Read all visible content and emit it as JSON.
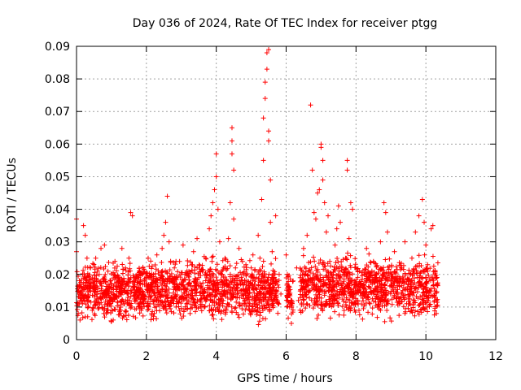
{
  "chart_data": {
    "type": "scatter",
    "title": "Day 036 of 2024, Rate Of TEC Index for receiver ptgg",
    "xlabel": "GPS time / hours",
    "ylabel": "ROTI / TECUs",
    "xlim": [
      0,
      12
    ],
    "ylim": [
      0,
      0.09
    ],
    "xticks": [
      0,
      2,
      4,
      6,
      8,
      10,
      12
    ],
    "xtick_labels": [
      "0",
      "2",
      "4",
      "6",
      "8",
      "10",
      "12"
    ],
    "yticks": [
      0,
      0.01,
      0.02,
      0.03,
      0.04,
      0.05,
      0.06,
      0.07,
      0.08,
      0.09
    ],
    "ytick_labels": [
      "0",
      "0.01",
      "0.02",
      "0.03",
      "0.04",
      "0.05",
      "0.06",
      "0.07",
      "0.08",
      "0.09"
    ],
    "grid": true,
    "marker": "+",
    "series": [
      {
        "name": "ROTI",
        "color": "#ff0000",
        "points": [
          [
            0.0,
            0.037
          ],
          [
            0.0,
            0.027
          ],
          [
            0.05,
            0.015
          ],
          [
            0.05,
            0.008
          ],
          [
            0.1,
            0.012
          ],
          [
            0.1,
            0.006
          ],
          [
            0.2,
            0.035
          ],
          [
            0.25,
            0.032
          ],
          [
            0.3,
            0.025
          ],
          [
            0.3,
            0.018
          ],
          [
            0.35,
            0.012
          ],
          [
            0.4,
            0.022
          ],
          [
            0.45,
            0.009
          ],
          [
            0.5,
            0.016
          ],
          [
            0.55,
            0.025
          ],
          [
            0.6,
            0.011
          ],
          [
            0.65,
            0.02
          ],
          [
            0.7,
            0.028
          ],
          [
            0.75,
            0.014
          ],
          [
            0.8,
            0.029
          ],
          [
            0.85,
            0.008
          ],
          [
            0.9,
            0.021
          ],
          [
            0.95,
            0.012
          ],
          [
            1.0,
            0.017
          ],
          [
            1.05,
            0.006
          ],
          [
            1.1,
            0.024
          ],
          [
            1.15,
            0.013
          ],
          [
            1.2,
            0.019
          ],
          [
            1.25,
            0.009
          ],
          [
            1.3,
            0.028
          ],
          [
            1.35,
            0.015
          ],
          [
            1.4,
            0.022
          ],
          [
            1.45,
            0.011
          ],
          [
            1.5,
            0.025
          ],
          [
            1.55,
            0.039
          ],
          [
            1.6,
            0.038
          ],
          [
            1.65,
            0.018
          ],
          [
            1.7,
            0.012
          ],
          [
            1.75,
            0.02
          ],
          [
            1.8,
            0.015
          ],
          [
            1.85,
            0.009
          ],
          [
            1.9,
            0.022
          ],
          [
            1.95,
            0.013
          ],
          [
            2.0,
            0.017
          ],
          [
            2.05,
            0.025
          ],
          [
            2.1,
            0.011
          ],
          [
            2.15,
            0.008
          ],
          [
            2.2,
            0.02
          ],
          [
            2.25,
            0.014
          ],
          [
            2.3,
            0.026
          ],
          [
            2.35,
            0.012
          ],
          [
            2.4,
            0.019
          ],
          [
            2.45,
            0.028
          ],
          [
            2.5,
            0.032
          ],
          [
            2.55,
            0.036
          ],
          [
            2.6,
            0.044
          ],
          [
            2.65,
            0.03
          ],
          [
            2.7,
            0.018
          ],
          [
            2.75,
            0.012
          ],
          [
            2.8,
            0.022
          ],
          [
            2.85,
            0.01
          ],
          [
            2.9,
            0.016
          ],
          [
            2.95,
            0.024
          ],
          [
            3.0,
            0.013
          ],
          [
            3.05,
            0.029
          ],
          [
            3.1,
            0.02
          ],
          [
            3.15,
            0.011
          ],
          [
            3.2,
            0.017
          ],
          [
            3.25,
            0.008
          ],
          [
            3.3,
            0.023
          ],
          [
            3.35,
            0.027
          ],
          [
            3.4,
            0.015
          ],
          [
            3.45,
            0.031
          ],
          [
            3.5,
            0.019
          ],
          [
            3.55,
            0.01
          ],
          [
            3.6,
            0.021
          ],
          [
            3.65,
            0.013
          ],
          [
            3.7,
            0.025
          ],
          [
            3.75,
            0.016
          ],
          [
            3.8,
            0.034
          ],
          [
            3.85,
            0.038
          ],
          [
            3.9,
            0.042
          ],
          [
            3.95,
            0.046
          ],
          [
            4.0,
            0.05
          ],
          [
            4.0,
            0.057
          ],
          [
            4.05,
            0.04
          ],
          [
            4.1,
            0.03
          ],
          [
            4.15,
            0.02
          ],
          [
            4.2,
            0.012
          ],
          [
            4.25,
            0.025
          ],
          [
            4.3,
            0.018
          ],
          [
            4.35,
            0.031
          ],
          [
            4.4,
            0.042
          ],
          [
            4.45,
            0.057
          ],
          [
            4.45,
            0.061
          ],
          [
            4.45,
            0.065
          ],
          [
            4.5,
            0.052
          ],
          [
            4.5,
            0.037
          ],
          [
            4.55,
            0.022
          ],
          [
            4.6,
            0.014
          ],
          [
            4.65,
            0.028
          ],
          [
            4.7,
            0.017
          ],
          [
            4.75,
            0.024
          ],
          [
            4.8,
            0.011
          ],
          [
            4.85,
            0.02
          ],
          [
            4.9,
            0.015
          ],
          [
            4.95,
            0.009
          ],
          [
            5.0,
            0.022
          ],
          [
            5.05,
            0.026
          ],
          [
            5.1,
            0.013
          ],
          [
            5.15,
            0.019
          ],
          [
            5.2,
            0.032
          ],
          [
            5.25,
            0.025
          ],
          [
            5.3,
            0.043
          ],
          [
            5.35,
            0.055
          ],
          [
            5.35,
            0.068
          ],
          [
            5.4,
            0.074
          ],
          [
            5.4,
            0.079
          ],
          [
            5.45,
            0.083
          ],
          [
            5.45,
            0.088
          ],
          [
            5.5,
            0.089
          ],
          [
            5.5,
            0.064
          ],
          [
            5.5,
            0.061
          ],
          [
            5.55,
            0.049
          ],
          [
            5.55,
            0.036
          ],
          [
            5.6,
            0.027
          ],
          [
            5.65,
            0.018
          ],
          [
            5.7,
            0.038
          ],
          [
            5.75,
            0.012
          ],
          [
            5.8,
            0.02
          ],
          [
            5.85,
            0.014
          ],
          [
            6.0,
            0.026
          ],
          [
            6.1,
            0.01
          ],
          [
            6.15,
            0.005
          ],
          [
            6.2,
            0.018
          ],
          [
            6.3,
            0.022
          ],
          [
            6.35,
            0.012
          ],
          [
            6.4,
            0.009
          ],
          [
            6.5,
            0.028
          ],
          [
            6.55,
            0.02
          ],
          [
            6.6,
            0.032
          ],
          [
            6.7,
            0.072
          ],
          [
            6.75,
            0.052
          ],
          [
            6.8,
            0.039
          ],
          [
            6.85,
            0.037
          ],
          [
            6.9,
            0.045
          ],
          [
            6.95,
            0.046
          ],
          [
            7.0,
            0.06
          ],
          [
            7.0,
            0.059
          ],
          [
            7.05,
            0.055
          ],
          [
            7.05,
            0.049
          ],
          [
            7.1,
            0.042
          ],
          [
            7.15,
            0.033
          ],
          [
            7.2,
            0.038
          ],
          [
            7.25,
            0.024
          ],
          [
            7.3,
            0.015
          ],
          [
            7.35,
            0.02
          ],
          [
            7.4,
            0.029
          ],
          [
            7.45,
            0.034
          ],
          [
            7.5,
            0.041
          ],
          [
            7.55,
            0.036
          ],
          [
            7.6,
            0.022
          ],
          [
            7.65,
            0.014
          ],
          [
            7.7,
            0.025
          ],
          [
            7.75,
            0.052
          ],
          [
            7.75,
            0.055
          ],
          [
            7.8,
            0.031
          ],
          [
            7.85,
            0.042
          ],
          [
            7.9,
            0.04
          ],
          [
            7.95,
            0.018
          ],
          [
            8.0,
            0.012
          ],
          [
            8.1,
            0.021
          ],
          [
            8.2,
            0.016
          ],
          [
            8.3,
            0.028
          ],
          [
            8.4,
            0.011
          ],
          [
            8.5,
            0.024
          ],
          [
            8.6,
            0.018
          ],
          [
            8.7,
            0.03
          ],
          [
            8.8,
            0.042
          ],
          [
            8.85,
            0.039
          ],
          [
            8.9,
            0.033
          ],
          [
            9.0,
            0.02
          ],
          [
            9.1,
            0.027
          ],
          [
            9.2,
            0.014
          ],
          [
            9.3,
            0.022
          ],
          [
            9.4,
            0.03
          ],
          [
            9.5,
            0.017
          ],
          [
            9.6,
            0.025
          ],
          [
            9.7,
            0.033
          ],
          [
            9.8,
            0.038
          ],
          [
            9.9,
            0.043
          ],
          [
            9.95,
            0.036
          ],
          [
            10.0,
            0.029
          ],
          [
            10.05,
            0.021
          ],
          [
            10.1,
            0.015
          ],
          [
            10.15,
            0.034
          ],
          [
            10.2,
            0.035
          ],
          [
            10.25,
            0.012
          ],
          [
            10.3,
            0.008
          ]
        ]
      }
    ],
    "dense_band": [
      {
        "x_start": 0.0,
        "x_end": 1.85,
        "y_low": 0.004,
        "y_high": 0.023
      },
      {
        "x_start": 1.8,
        "x_end": 5.8,
        "y_low": 0.003,
        "y_high": 0.024
      },
      {
        "x_start": 6.0,
        "x_end": 6.2,
        "y_low": 0.004,
        "y_high": 0.02
      },
      {
        "x_start": 6.4,
        "x_end": 10.35,
        "y_low": 0.004,
        "y_high": 0.025
      }
    ]
  }
}
